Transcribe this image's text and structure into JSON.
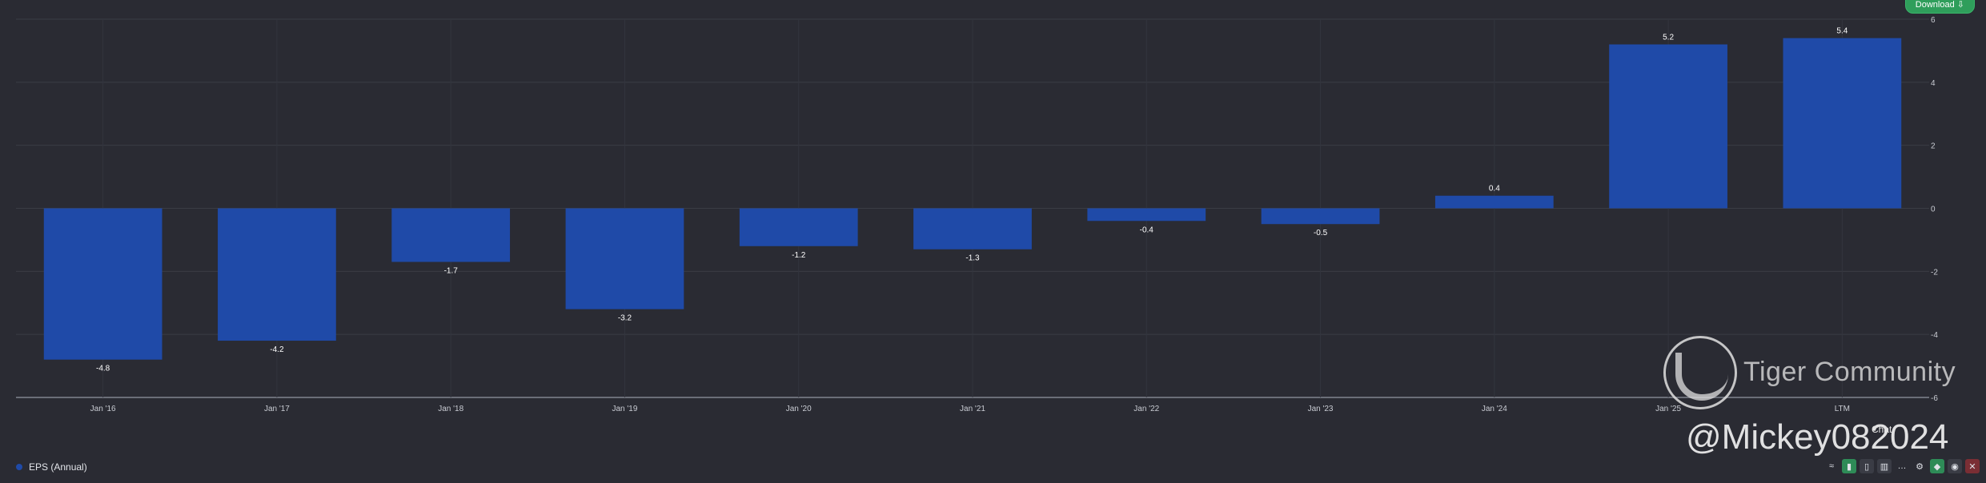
{
  "download_label": "Download",
  "legend_label": "EPS (Annual)",
  "watermark": {
    "brand": "Tiger Community",
    "handle": "@Mickey082024"
  },
  "credit": "Chat",
  "colors": {
    "bar": "#1f4aa8",
    "background": "#2a2b33",
    "grid": "#3a3c45",
    "download": "#2f9e5b"
  },
  "toolbar_icons": [
    "compare-icon",
    "bar-chart-icon",
    "column-chart-icon",
    "stacked-chart-icon",
    "more-icon",
    "settings-icon",
    "tag-icon",
    "eye-icon",
    "close-icon"
  ],
  "chart_data": {
    "type": "bar",
    "categories": [
      "Jan '16",
      "Jan '17",
      "Jan '18",
      "Jan '19",
      "Jan '20",
      "Jan '21",
      "Jan '22",
      "Jan '23",
      "Jan '24",
      "Jan '25",
      "LTM"
    ],
    "series": [
      {
        "name": "EPS (Annual)",
        "values": [
          -4.8,
          -4.2,
          -1.7,
          -3.2,
          -1.2,
          -1.3,
          -0.4,
          -0.5,
          0.4,
          5.2,
          5.4
        ]
      }
    ],
    "data_labels": [
      "-4.8",
      "-4.2",
      "-1.7",
      "-3.2",
      "-1.2",
      "-1.3",
      "-0.4",
      "-0.5",
      "0.4",
      "5.2",
      "5.4"
    ],
    "y_ticks": [
      6,
      4,
      2,
      0,
      -2,
      -4,
      -6
    ],
    "ylim": [
      -6,
      6
    ],
    "grid": true,
    "legend": "bottom-left"
  }
}
